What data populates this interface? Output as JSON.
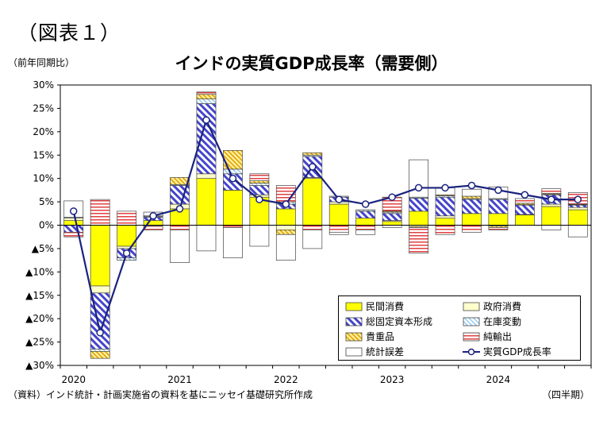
{
  "figure_label": "（図表１）",
  "unit_label": "（前年同期比）",
  "title": "インドの実質GDP成長率（需要側）",
  "source": "（資料）インド統計・計画実施省の資料を基にニッセイ基礎研究所作成",
  "period_label": "（四半期）",
  "colors": {
    "consumption": "#ffff00",
    "government": "#ffffcc",
    "gfcf_stripe": "#4444cc",
    "inventory_stripe": "#99ccee",
    "valuables_stripe": "#e0a000",
    "net_exports_stripe": "#e04040",
    "discrepancy": "#ffffff",
    "gdp_line": "#1a237e"
  },
  "legend": [
    {
      "key": "consumption",
      "label": "民間消費"
    },
    {
      "key": "government",
      "label": "政府消費"
    },
    {
      "key": "gfcf",
      "label": "総固定資本形成"
    },
    {
      "key": "inventory",
      "label": "在庫変動"
    },
    {
      "key": "valuables",
      "label": "貴重品"
    },
    {
      "key": "net_exports",
      "label": "純輸出"
    },
    {
      "key": "discrepancy",
      "label": "統計誤差"
    },
    {
      "key": "gdp",
      "label": "実質GDP成長率"
    }
  ],
  "chart_data": {
    "type": "bar",
    "stacked": true,
    "y_tick_labels": [
      "30%",
      "25%",
      "20%",
      "15%",
      "10%",
      "5%",
      "0%",
      "▲5%",
      "▲10%",
      "▲15%",
      "▲20%",
      "▲25%",
      "▲30%"
    ],
    "ylim": [
      -30,
      30
    ],
    "year_labels": [
      "2020",
      "2021",
      "2022",
      "2023",
      "2024"
    ],
    "quarters_count": 20,
    "series": [
      {
        "key": "consumption",
        "name": "民間消費",
        "values": [
          1.0,
          -13.0,
          -4.5,
          1.0,
          3.5,
          10.0,
          7.5,
          6.0,
          3.5,
          10.0,
          4.5,
          1.5,
          0.8,
          3.0,
          1.5,
          2.5,
          2.5,
          2.2,
          4.0,
          3.3
        ]
      },
      {
        "key": "government",
        "name": "政府消費",
        "values": [
          0.5,
          -1.5,
          -0.5,
          -0.2,
          1.0,
          1.0,
          0.0,
          0.5,
          -1.0,
          0.2,
          0.5,
          0.0,
          0.2,
          -0.3,
          0.5,
          0.0,
          -0.2,
          0.1,
          0.5,
          0.5
        ]
      },
      {
        "key": "gfcf",
        "name": "総固定資本形成",
        "values": [
          -1.5,
          -12.0,
          -2.0,
          0.7,
          4.0,
          15.0,
          3.5,
          2.0,
          1.0,
          4.5,
          1.0,
          1.5,
          1.5,
          2.8,
          4.0,
          3.0,
          3.0,
          2.0,
          2.0,
          0.5
        ]
      },
      {
        "key": "inventory",
        "name": "在庫変動",
        "values": [
          0.2,
          -0.5,
          -0.5,
          0.2,
          0.2,
          1.0,
          1.0,
          0.5,
          0.5,
          0.3,
          0.2,
          0.3,
          0.3,
          0.2,
          0.3,
          0.2,
          0.2,
          0.1,
          0.1,
          0.1
        ]
      },
      {
        "key": "valuables",
        "name": "貴重品",
        "values": [
          0.0,
          -1.5,
          0.0,
          0.1,
          1.5,
          1.0,
          4.0,
          0.5,
          -1.0,
          0.5,
          0.0,
          0.0,
          0.2,
          -0.2,
          0.2,
          0.5,
          -0.3,
          0.3,
          0.2,
          0.1
        ]
      },
      {
        "key": "net_exports",
        "name": "純輸出",
        "values": [
          -1.0,
          5.5,
          3.0,
          -0.8,
          -1.0,
          0.5,
          -0.5,
          1.5,
          3.5,
          -1.0,
          -1.5,
          -1.0,
          3.0,
          -5.5,
          -2.0,
          -1.5,
          -0.5,
          1.0,
          1.0,
          2.5
        ]
      },
      {
        "key": "discrepancy",
        "name": "統計誤差",
        "values": [
          3.5,
          0.0,
          0.0,
          0.8,
          -7.0,
          -5.5,
          -6.5,
          -4.5,
          -5.5,
          -4.0,
          -0.5,
          -1.0,
          -0.5,
          8.0,
          1.5,
          1.5,
          2.5,
          0.0,
          -1.0,
          -2.5
        ]
      }
    ],
    "line": {
      "key": "gdp",
      "name": "実質GDP成長率",
      "values": [
        3.0,
        -23.0,
        -6.0,
        2.0,
        3.5,
        22.5,
        10.0,
        5.5,
        4.5,
        12.5,
        5.5,
        4.5,
        6.0,
        8.0,
        8.0,
        8.5,
        7.5,
        6.5,
        5.5,
        5.5
      ]
    }
  }
}
